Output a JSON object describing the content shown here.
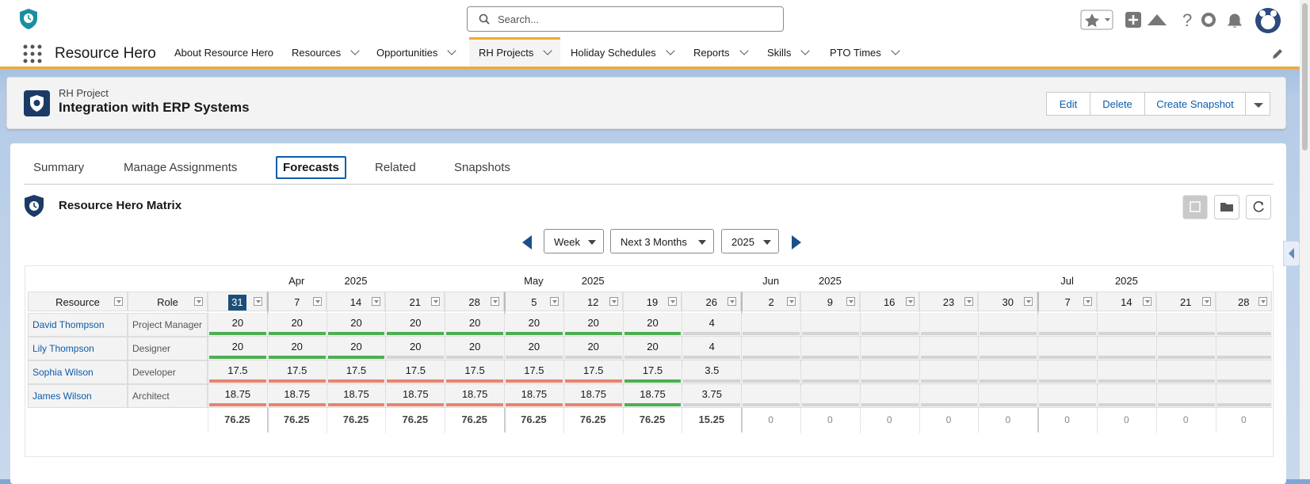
{
  "header": {
    "search_placeholder": "Search..."
  },
  "nav": {
    "app_name": "Resource Hero",
    "items": [
      "About Resource Hero",
      "Resources",
      "Opportunities",
      "RH Projects",
      "Holiday Schedules",
      "Reports",
      "Skills",
      "PTO Times"
    ],
    "active": 3
  },
  "record": {
    "object_label": "RH Project",
    "title": "Integration with ERP Systems",
    "actions": [
      "Edit",
      "Delete",
      "Create Snapshot"
    ]
  },
  "tabs": {
    "items": [
      "Summary",
      "Manage Assignments",
      "Forecasts",
      "Related",
      "Snapshots"
    ],
    "active": 2
  },
  "matrix": {
    "title": "Resource Hero Matrix",
    "controls": [
      "Week",
      "Next 3 Months",
      "2025"
    ],
    "columns": [
      "Resource",
      "Role"
    ],
    "months": [
      {
        "name": null,
        "year": null,
        "weeks": [
          31
        ]
      },
      {
        "name": "Apr",
        "year": 2025,
        "weeks": [
          7,
          14,
          21,
          28
        ]
      },
      {
        "name": "May",
        "year": 2025,
        "weeks": [
          5,
          12,
          19,
          26
        ]
      },
      {
        "name": "Jun",
        "year": 2025,
        "weeks": [
          2,
          9,
          16,
          23,
          30
        ]
      },
      {
        "name": "Jul",
        "year": 2025,
        "weeks": [
          7,
          14,
          21,
          28
        ]
      }
    ],
    "rows": [
      {
        "resource": "David Thompson",
        "role": "Project Manager",
        "values": [
          20,
          20,
          20,
          20,
          20,
          20,
          20,
          20,
          4,
          null,
          null,
          null,
          null,
          null,
          null,
          null,
          null,
          null
        ],
        "bars": [
          "#4caf50",
          "#4caf50",
          "#4caf50",
          "#4caf50",
          "#4caf50",
          "#4caf50",
          "#4caf50",
          "#4caf50",
          "#d4d4d4",
          "#d4d4d4",
          "#d4d4d4",
          "#d4d4d4",
          "#d4d4d4",
          "#d4d4d4",
          "#d4d4d4",
          "#d4d4d4",
          "#d4d4d4",
          "#d4d4d4"
        ]
      },
      {
        "resource": "Lily Thompson",
        "role": "Designer",
        "values": [
          20,
          20,
          20,
          20,
          20,
          20,
          20,
          20,
          4,
          null,
          null,
          null,
          null,
          null,
          null,
          null,
          null,
          null
        ],
        "bars": [
          "#4caf50",
          "#4caf50",
          "#4caf50",
          "#d4d4d4",
          "#d4d4d4",
          "#d4d4d4",
          "#d4d4d4",
          "#d4d4d4",
          "#d4d4d4",
          "#d4d4d4",
          "#d4d4d4",
          "#d4d4d4",
          "#d4d4d4",
          "#d4d4d4",
          "#d4d4d4",
          "#d4d4d4",
          "#d4d4d4",
          "#d4d4d4"
        ]
      },
      {
        "resource": "Sophia Wilson",
        "role": "Developer",
        "values": [
          17.5,
          17.5,
          17.5,
          17.5,
          17.5,
          17.5,
          17.5,
          17.5,
          3.5,
          null,
          null,
          null,
          null,
          null,
          null,
          null,
          null,
          null
        ],
        "bars": [
          "#e8846f",
          "#e8846f",
          "#e8846f",
          "#e8846f",
          "#e8846f",
          "#e8846f",
          "#e8846f",
          "#4caf50",
          "#d4d4d4",
          "#d4d4d4",
          "#d4d4d4",
          "#d4d4d4",
          "#d4d4d4",
          "#d4d4d4",
          "#d4d4d4",
          "#d4d4d4",
          "#d4d4d4",
          "#d4d4d4"
        ]
      },
      {
        "resource": "James Wilson",
        "role": "Architect",
        "values": [
          18.75,
          18.75,
          18.75,
          18.75,
          18.75,
          18.75,
          18.75,
          18.75,
          3.75,
          null,
          null,
          null,
          null,
          null,
          null,
          null,
          null,
          null
        ],
        "bars": [
          "#e8846f",
          "#e8846f",
          "#e8846f",
          "#e8846f",
          "#e8846f",
          "#e8846f",
          "#e8846f",
          "#4caf50",
          "#d4d4d4",
          "#d4d4d4",
          "#d4d4d4",
          "#d4d4d4",
          "#d4d4d4",
          "#d4d4d4",
          "#d4d4d4",
          "#d4d4d4",
          "#d4d4d4",
          "#d4d4d4"
        ]
      }
    ],
    "totals": [
      76.25,
      76.25,
      76.25,
      76.25,
      76.25,
      76.25,
      76.25,
      76.25,
      15.25,
      0,
      0,
      0,
      0,
      0,
      0,
      0,
      0,
      0
    ]
  }
}
